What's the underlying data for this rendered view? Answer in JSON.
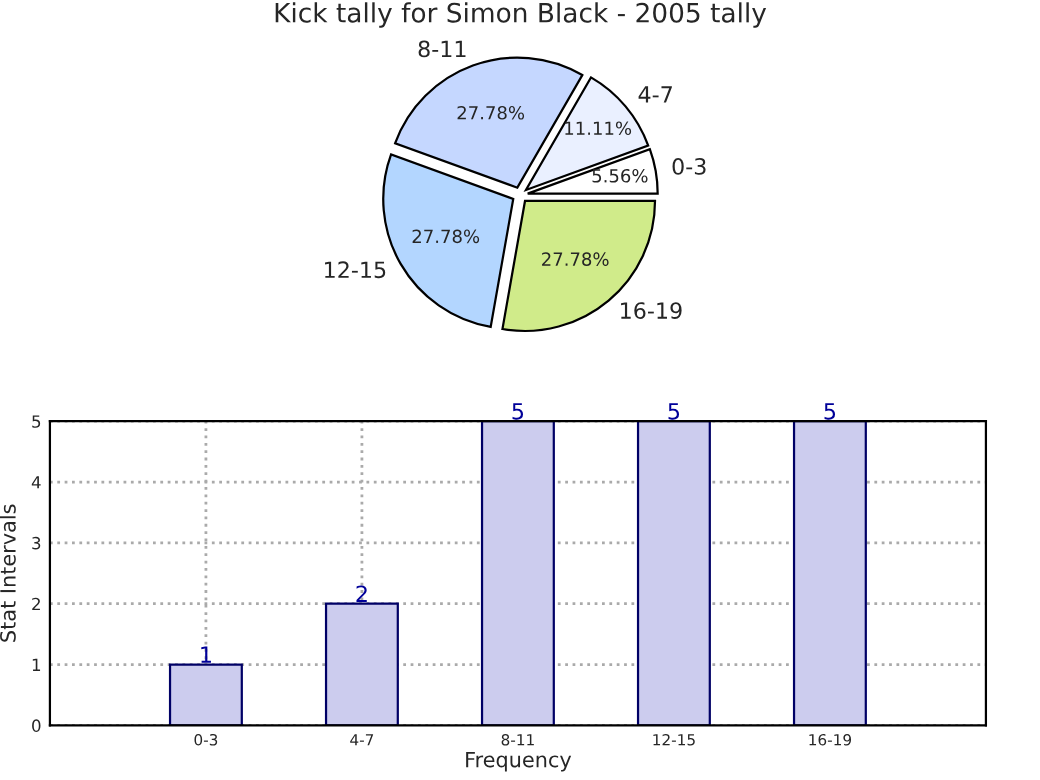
{
  "chart_data": [
    {
      "type": "pie",
      "title": "Kick tally for Simon Black - 2005 tally",
      "categories": [
        "0-3",
        "4-7",
        "8-11",
        "12-15",
        "16-19"
      ],
      "values": [
        5.56,
        11.11,
        27.78,
        27.78,
        27.78
      ],
      "value_labels": [
        "5.56%",
        "11.11%",
        "27.78%",
        "27.78%",
        "27.78%"
      ],
      "colors": [
        "#ffffff",
        "#eaf0ff",
        "#c5d7ff",
        "#b3d6ff",
        "#d0eb8a"
      ]
    },
    {
      "type": "bar",
      "categories": [
        "0-3",
        "4-7",
        "8-11",
        "12-15",
        "16-19"
      ],
      "values": [
        1,
        2,
        5,
        5,
        5
      ],
      "color": "#ccccee",
      "xlabel": "Frequency",
      "ylabel": "Stat Intervals",
      "ylim": [
        0,
        5
      ],
      "yticks": [
        0,
        1,
        2,
        3,
        4,
        5
      ],
      "grid": true,
      "data_labels": true
    }
  ]
}
